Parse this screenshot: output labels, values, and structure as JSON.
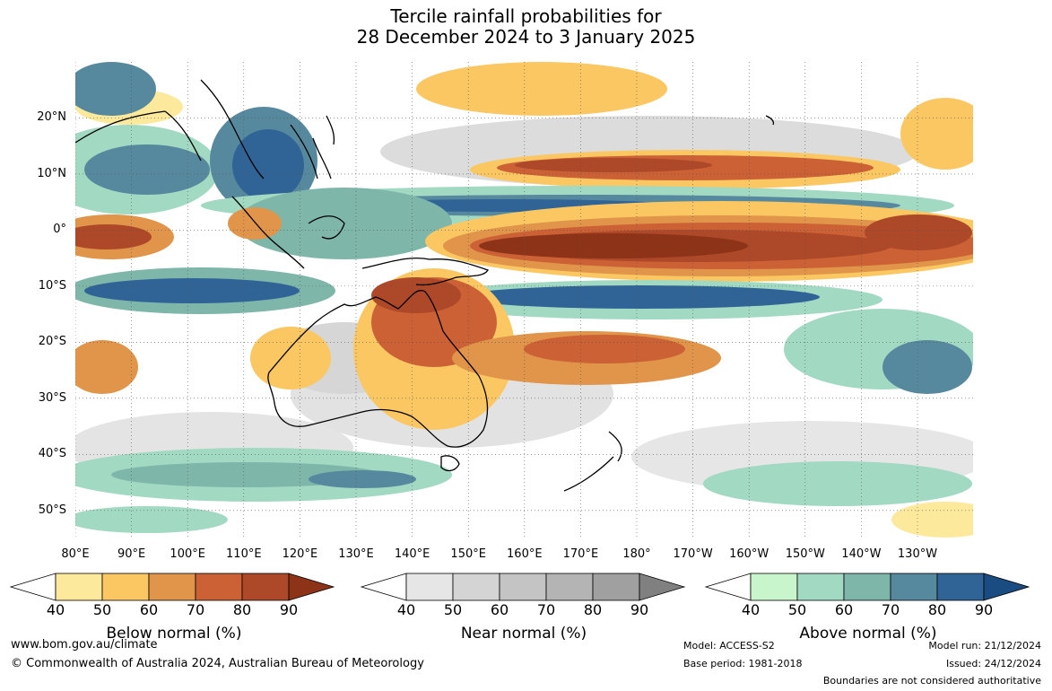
{
  "title": {
    "line1": "Tercile rainfall probabilities for",
    "line2": "28 December 2024 to 3 January 2025"
  },
  "map": {
    "lat_labels": [
      "20°N",
      "10°N",
      "0°",
      "10°S",
      "20°S",
      "30°S",
      "40°S",
      "50°S"
    ],
    "lon_labels": [
      "80°E",
      "90°E",
      "100°E",
      "110°E",
      "120°E",
      "130°E",
      "140°E",
      "150°E",
      "160°E",
      "170°E",
      "180°",
      "170°W",
      "160°W",
      "150°W",
      "140°W",
      "130°W"
    ]
  },
  "legends": {
    "below": {
      "label": "Below normal (%)",
      "ticks": [
        "40",
        "50",
        "60",
        "70",
        "80",
        "90"
      ],
      "colors": [
        "#ffffff",
        "#fde99c",
        "#fbc762",
        "#e0954a",
        "#cc6136",
        "#ad4829",
        "#8c3318"
      ]
    },
    "near": {
      "label": "Near normal (%)",
      "ticks": [
        "40",
        "50",
        "60",
        "70",
        "80",
        "90"
      ],
      "colors": [
        "#ffffff",
        "#e6e6e6",
        "#d4d4d4",
        "#c4c4c4",
        "#b4b4b4",
        "#a0a0a0",
        "#808080"
      ]
    },
    "above": {
      "label": "Above normal (%)",
      "ticks": [
        "40",
        "50",
        "60",
        "70",
        "80",
        "90"
      ],
      "colors": [
        "#ffffff",
        "#c9f5cc",
        "#a2d9c2",
        "#7fb6aa",
        "#57899e",
        "#306496",
        "#1a4c82"
      ]
    }
  },
  "footer": {
    "website": "www.bom.gov.au/climate",
    "copyright": "© Commonwealth of Australia 2024, Australian Bureau of Meteorology",
    "model": "Model: ACCESS-S2",
    "base_period": "Base period: 1981-2018",
    "model_run": "Model run: 21/12/2024",
    "issued": "Issued: 24/12/2024",
    "disclaimer": "Boundaries are not considered authoritative"
  }
}
